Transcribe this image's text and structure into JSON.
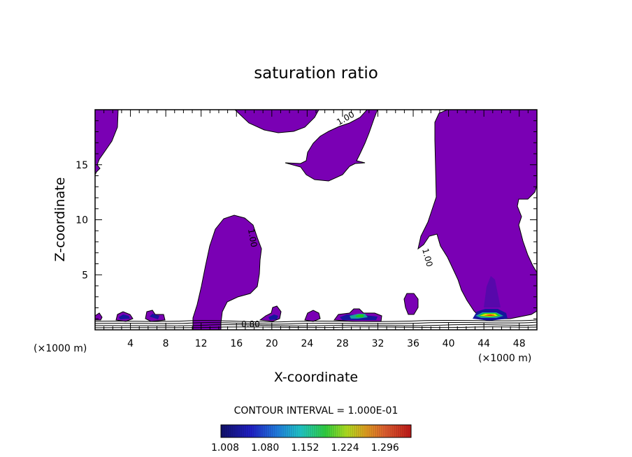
{
  "chart_data": {
    "type": "contour",
    "title": "saturation ratio",
    "xlabel": "X-coordinate",
    "ylabel": "Z-coordinate",
    "x_unit": "(×1000 m)",
    "y_unit": "(×1000 m)",
    "xlim": [
      0,
      50
    ],
    "ylim": [
      0,
      20
    ],
    "xticks": [
      4,
      8,
      12,
      16,
      20,
      24,
      28,
      32,
      36,
      40,
      44,
      48
    ],
    "yticks": [
      5,
      10,
      15
    ],
    "contour_interval_text": "CONTOUR INTERVAL = 1.000E-01",
    "contour_labels": [
      {
        "text": "1.00",
        "x": 28.5,
        "y": 19.0,
        "rotate": -30
      },
      {
        "text": "1.00",
        "x": 17.5,
        "y": 8.3,
        "rotate": 80
      },
      {
        "text": "1.00",
        "x": 37.3,
        "y": 6.5,
        "rotate": 75
      },
      {
        "text": "0.80",
        "x": 17.6,
        "y": 0.25,
        "rotate": 0
      }
    ],
    "colorbar": {
      "ticks": [
        "1.008",
        "1.080",
        "1.152",
        "1.224",
        "1.296"
      ],
      "min": 1.008,
      "max": 1.296
    },
    "colors": {
      "fill": "#7a00b4",
      "core": "#16169c",
      "teal": "#1aa0a0",
      "green": "#20c820",
      "yellow": "#e0e000",
      "orange": "#e07000",
      "red": "#c80000"
    }
  }
}
